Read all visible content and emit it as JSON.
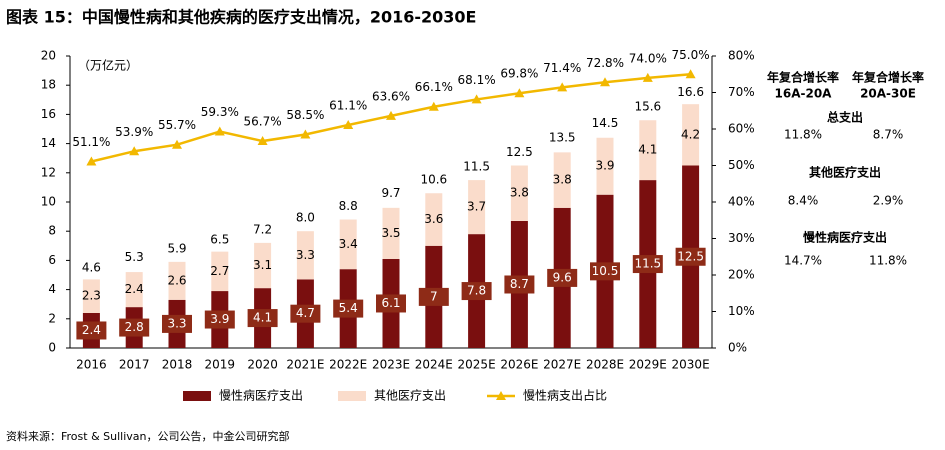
{
  "chart_data": {
    "type": "bar",
    "stacked": true,
    "title": "图表 15：中国慢性病和其他疾病的医疗支出情况，2016-2030E",
    "y_unit_label": "（万亿元）",
    "source": "资料来源：Frost & Sullivan，公司公告，中金公司研究部",
    "categories": [
      "2016",
      "2017",
      "2018",
      "2019",
      "2020",
      "2021E",
      "2022E",
      "2023E",
      "2024E",
      "2025E",
      "2026E",
      "2027E",
      "2028E",
      "2029E",
      "2030E"
    ],
    "series": [
      {
        "name": "慢性病医疗支出",
        "type": "bar",
        "color": "#7a0f0f",
        "label_box_color": "#8e2b17",
        "values": [
          2.4,
          2.8,
          3.3,
          3.9,
          4.1,
          4.7,
          5.4,
          6.1,
          7.0,
          7.8,
          8.7,
          9.6,
          10.5,
          11.5,
          12.5
        ]
      },
      {
        "name": "其他医疗支出",
        "type": "bar",
        "color": "#fadccb",
        "values": [
          2.3,
          2.4,
          2.6,
          2.7,
          3.1,
          3.3,
          3.4,
          3.5,
          3.6,
          3.7,
          3.8,
          3.8,
          3.9,
          4.1,
          4.2
        ]
      },
      {
        "name": "慢性病支出占比",
        "type": "line",
        "axis": "y2",
        "color": "#f2b800",
        "values": [
          51.1,
          53.9,
          55.7,
          59.3,
          56.7,
          58.5,
          61.1,
          63.6,
          66.1,
          68.1,
          69.8,
          71.4,
          72.8,
          74.0,
          75.0
        ],
        "value_labels": [
          "51.1%",
          "53.9%",
          "55.7%",
          "59.3%",
          "56.7%",
          "58.5%",
          "61.1%",
          "63.6%",
          "66.1%",
          "68.1%",
          "69.8%",
          "71.4%",
          "72.8%",
          "74.0%",
          "75.0%"
        ]
      }
    ],
    "totals": [
      4.6,
      5.3,
      5.9,
      6.5,
      7.2,
      8.0,
      8.8,
      9.7,
      10.6,
      11.5,
      12.5,
      13.5,
      14.5,
      15.6,
      16.6
    ],
    "totals_labels": [
      "4.6",
      "5.3",
      "5.9",
      "6.5",
      "7.2",
      "8.0",
      "8.8",
      "9.7",
      "10.6",
      "11.5",
      "12.5",
      "13.5",
      "14.5",
      "15.6",
      "16.6"
    ],
    "ylim": [
      0,
      20
    ],
    "yticks": [
      0,
      2,
      4,
      6,
      8,
      10,
      12,
      14,
      16,
      18,
      20
    ],
    "y2lim": [
      0,
      80
    ],
    "y2ticks": [
      {
        "value": 0,
        "label": "0%"
      },
      {
        "value": 10,
        "label": "10%"
      },
      {
        "value": 20,
        "label": "20%"
      },
      {
        "value": 30,
        "label": "30%"
      },
      {
        "value": 40,
        "label": "40%"
      },
      {
        "value": 50,
        "label": "50%"
      },
      {
        "value": 60,
        "label": "60%"
      },
      {
        "value": 70,
        "label": "70%"
      },
      {
        "value": 80,
        "label": "80%"
      }
    ],
    "side_table": {
      "columns": [
        [
          "年复合增长率",
          "16A-20A"
        ],
        [
          "年复合增长率",
          "20A-30E"
        ]
      ],
      "rows": [
        {
          "label": "总支出",
          "values": [
            "11.8%",
            "8.7%"
          ]
        },
        {
          "label": "其他医疗支出",
          "values": [
            "8.4%",
            "2.9%"
          ]
        },
        {
          "label": "慢性病医疗支出",
          "values": [
            "14.7%",
            "11.8%"
          ]
        }
      ]
    }
  }
}
